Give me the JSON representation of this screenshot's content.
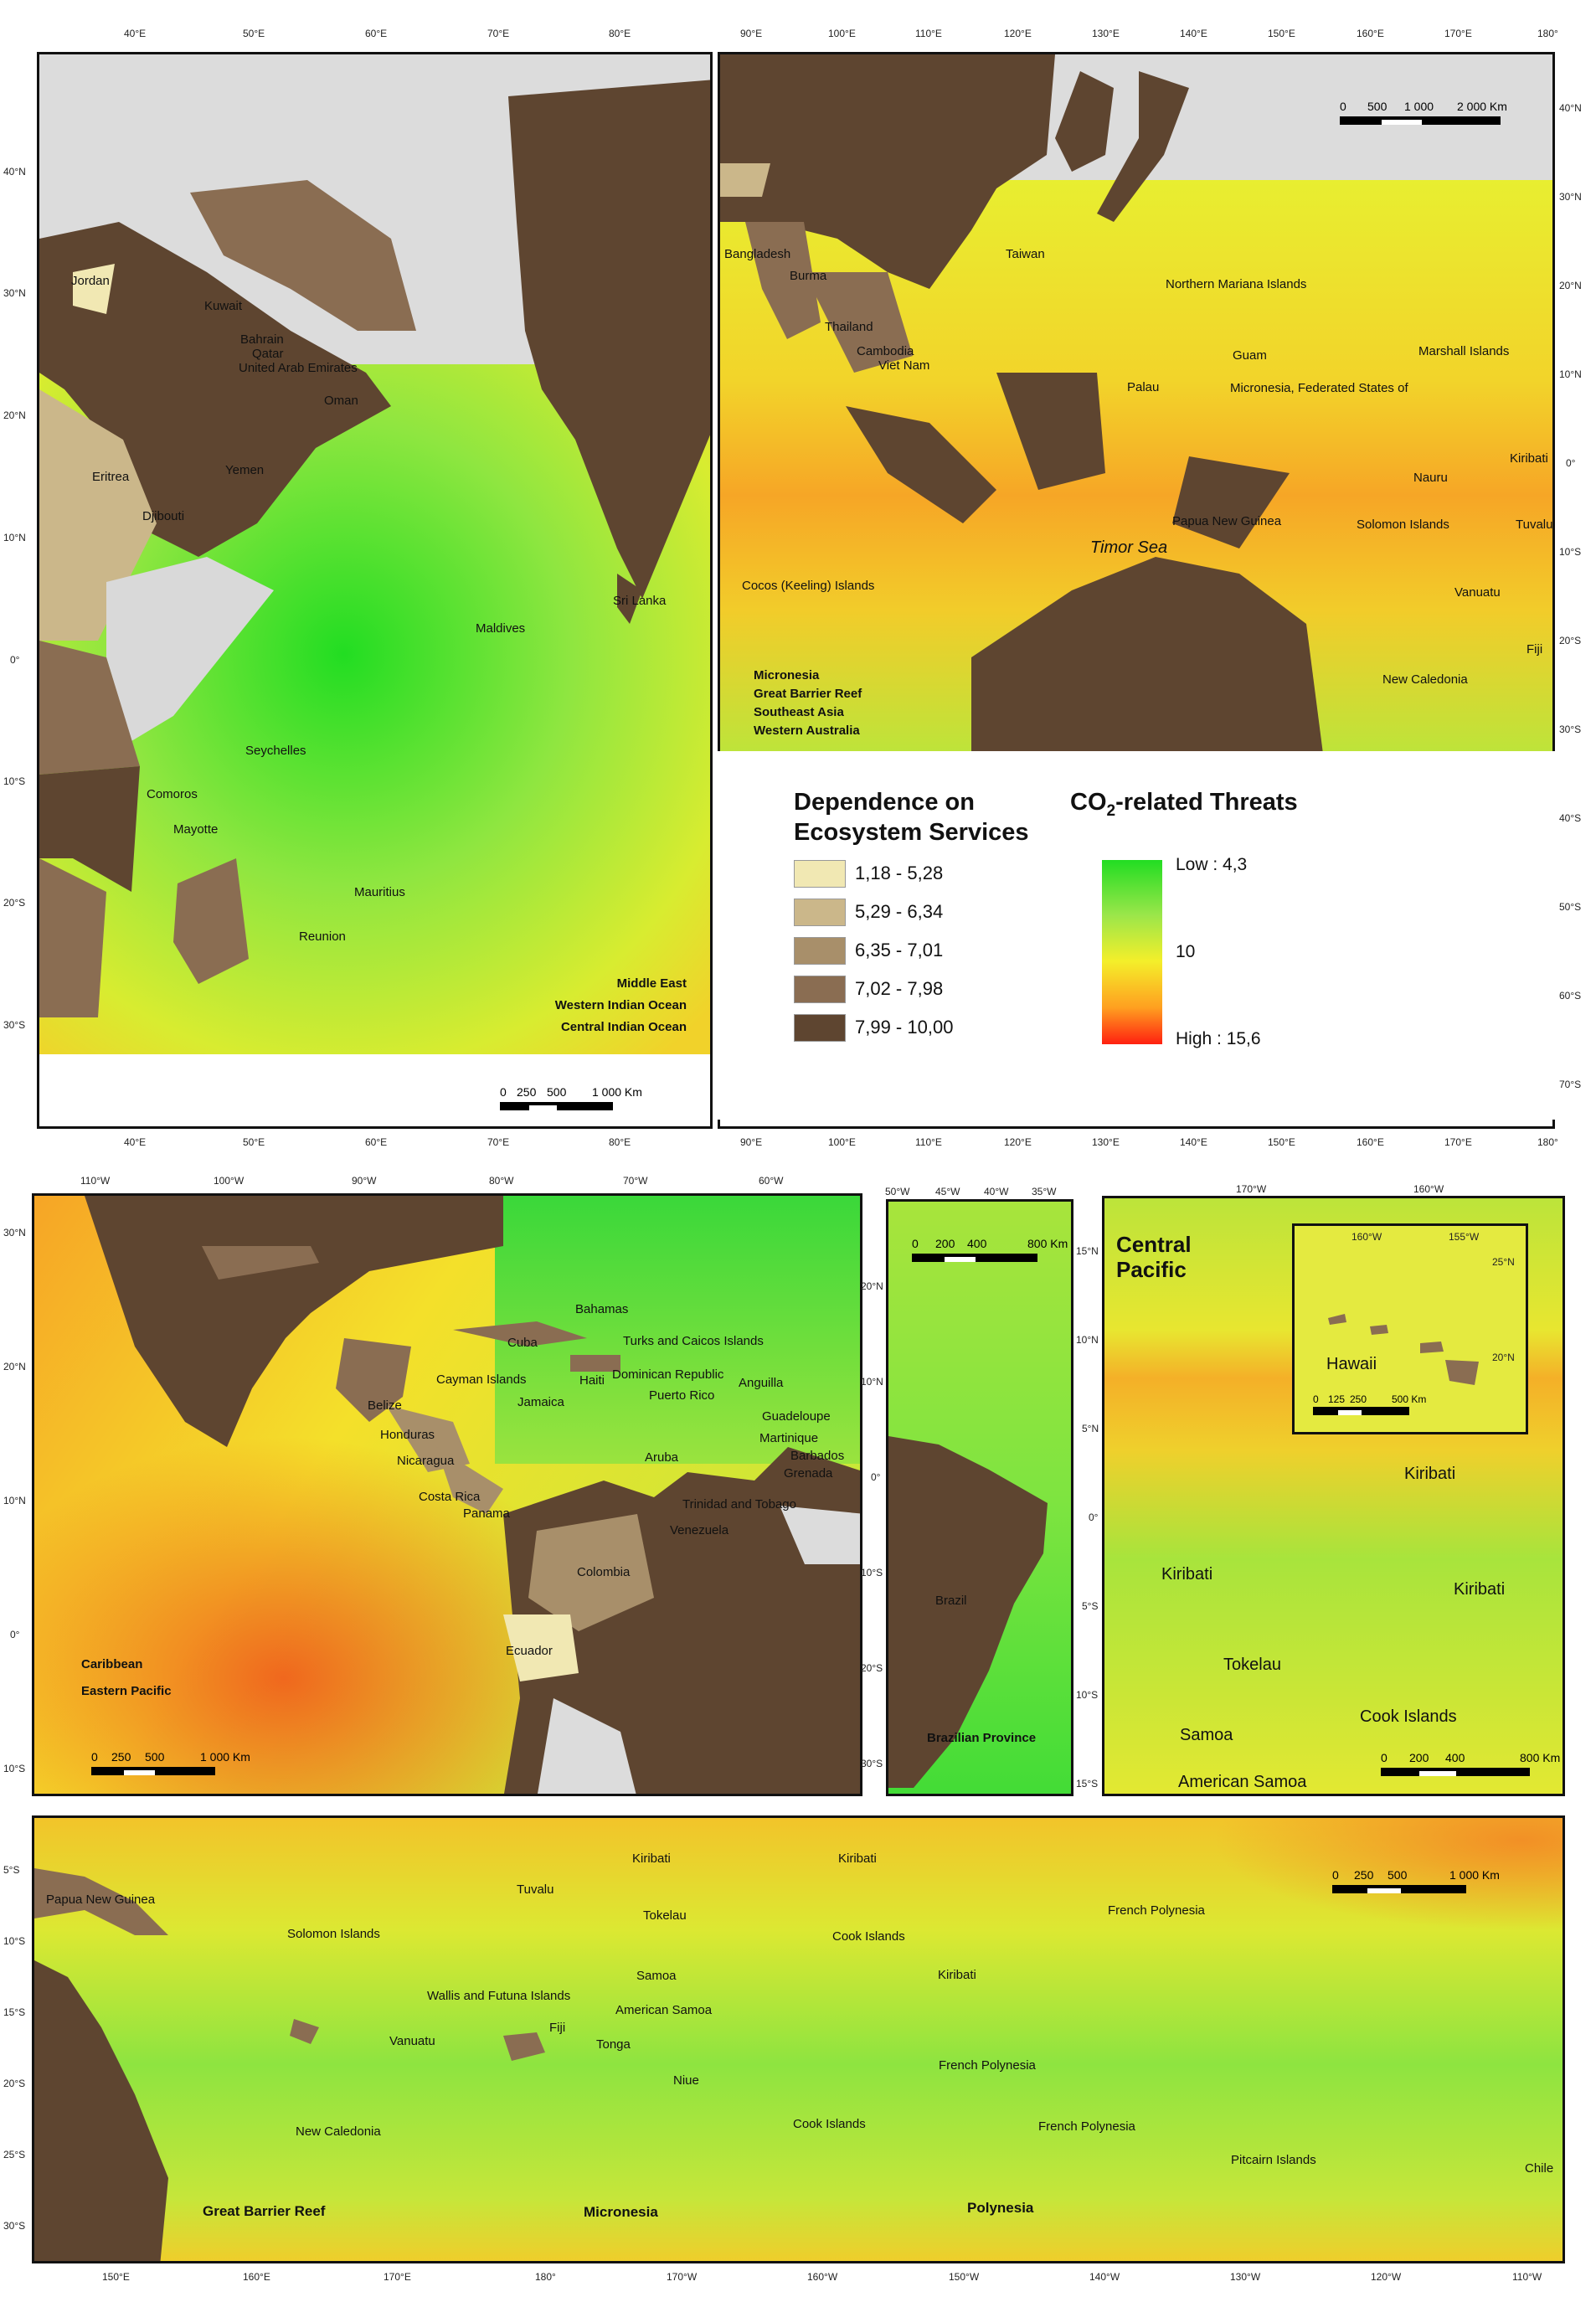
{
  "ticks": {
    "p1_top": [
      "40°E",
      "50°E",
      "60°E",
      "70°E",
      "80°E"
    ],
    "p1_left": [
      "40°N",
      "30°N",
      "20°N",
      "10°N",
      "0°",
      "10°S",
      "20°S",
      "30°S"
    ],
    "p2_top": [
      "90°E",
      "100°E",
      "110°E",
      "120°E",
      "130°E",
      "140°E",
      "150°E",
      "160°E",
      "170°E",
      "180°"
    ],
    "p2_right": [
      "40°N",
      "30°N",
      "20°N",
      "10°N",
      "0°",
      "10°S",
      "20°S",
      "30°S",
      "40°S",
      "50°S",
      "60°S",
      "70°S"
    ],
    "p3_top": [
      "110°W",
      "100°W",
      "90°W",
      "80°W",
      "70°W",
      "60°W"
    ],
    "p3_left": [
      "30°N",
      "20°N",
      "10°N",
      "0°",
      "10°S"
    ],
    "p4_top": [
      "50°W",
      "45°W",
      "40°W",
      "35°W"
    ],
    "p4_left": [
      "20°N",
      "10°N",
      "0°",
      "10°S",
      "20°S",
      "30°S"
    ],
    "p5_top": [
      "170°W",
      "160°W"
    ],
    "p5_left": [
      "15°N",
      "10°N",
      "5°N",
      "0°",
      "5°S",
      "10°S",
      "15°S"
    ],
    "p5_inset_top": [
      "160°W",
      "155°W"
    ],
    "p5_inset_right": [
      "25°N",
      "20°N"
    ],
    "p6_left": [
      "5°S",
      "10°S",
      "15°S",
      "20°S",
      "25°S",
      "30°S"
    ],
    "p6_bottom": [
      "150°E",
      "160°E",
      "170°E",
      "180°",
      "170°W",
      "160°W",
      "150°W",
      "140°W",
      "130°W",
      "120°W",
      "110°W"
    ]
  },
  "labels": {
    "p1": [
      "Jordan",
      "Kuwait",
      "Bahrain",
      "Qatar",
      "United Arab Emirates",
      "Oman",
      "Yemen",
      "Eritrea",
      "Djibouti",
      "Sri Lanka",
      "Maldives",
      "Seychelles",
      "Comoros",
      "Mayotte",
      "Mauritius",
      "Reunion"
    ],
    "p2": [
      "Bangladesh",
      "Burma",
      "Taiwan",
      "Northern Mariana Islands",
      "Thailand",
      "Cambodia",
      "Viet Nam",
      "Guam",
      "Marshall Islands",
      "Palau",
      "Micronesia, Federated States of",
      "Kiribati",
      "Nauru",
      "Papua New Guinea",
      "Solomon Islands",
      "Tuvalu",
      "Timor Sea",
      "Cocos (Keeling) Islands",
      "Vanuatu",
      "Fiji",
      "New Caledonia"
    ],
    "p3": [
      "Bahamas",
      "Cuba",
      "Turks and Caicos Islands",
      "Cayman Islands",
      "Haiti",
      "Dominican Republic",
      "Anguilla",
      "Jamaica",
      "Puerto Rico",
      "Belize",
      "Guadeloupe",
      "Martinique",
      "Honduras",
      "Barbados",
      "Grenada",
      "Nicaragua",
      "Aruba",
      "Costa Rica",
      "Trinidad and Tobago",
      "Panama",
      "Venezuela",
      "Colombia",
      "Ecuador"
    ],
    "p4": [
      "Brazil"
    ],
    "p5": [
      "Hawaii",
      "Kiribati",
      "Kiribati",
      "Kiribati",
      "Tokelau",
      "Samoa",
      "Cook Islands",
      "American Samoa"
    ],
    "p6": [
      "Papua New Guinea",
      "Tuvalu",
      "Kiribati",
      "Kiribati",
      "Solomon Islands",
      "Tokelau",
      "Cook Islands",
      "French Polynesia",
      "Samoa",
      "Kiribati",
      "Wallis and Futuna Islands",
      "American Samoa",
      "Fiji",
      "Tonga",
      "Vanuatu",
      "Niue",
      "French Polynesia",
      "New Caledonia",
      "Cook Islands",
      "French Polynesia",
      "Pitcairn Islands",
      "Chile"
    ]
  },
  "regions": {
    "p1": [
      "Middle East",
      "Western Indian Ocean",
      "Central Indian Ocean"
    ],
    "p2": [
      "Micronesia",
      "Great Barrier Reef",
      "Southeast Asia",
      "Western Australia"
    ],
    "p3": [
      "Caribbean",
      "Eastern Pacific"
    ],
    "p4": [
      "Brazilian Province"
    ],
    "p5": [
      "Central",
      "Pacific"
    ],
    "p6": [
      "Great Barrier Reef",
      "Micronesia",
      "Polynesia"
    ]
  },
  "scalebars": {
    "p1": [
      "0",
      "250",
      "500",
      "1 000 Km"
    ],
    "p2": [
      "0",
      "500",
      "1 000",
      "2 000 Km"
    ],
    "p3": [
      "0",
      "250",
      "500",
      "1 000 Km"
    ],
    "p4": [
      "0",
      "200",
      "400",
      "800 Km"
    ],
    "p5": [
      "0",
      "200",
      "400",
      "800 Km"
    ],
    "p5_inset": [
      "0",
      "125",
      "250",
      "500 Km"
    ],
    "p6": [
      "0",
      "250",
      "500",
      "1 000 Km"
    ]
  },
  "legend": {
    "dependence_title_1": "Dependence on",
    "dependence_title_2": "Ecosystem Services",
    "classes": [
      {
        "label": "1,18 - 5,28",
        "color": "#f1e8b3"
      },
      {
        "label": "5,29 - 6,34",
        "color": "#cbb78a"
      },
      {
        "label": "6,35 - 7,01",
        "color": "#a88f6a"
      },
      {
        "label": "7,02 - 7,98",
        "color": "#8a6d52"
      },
      {
        "label": "7,99 - 10,00",
        "color": "#5e4530"
      }
    ],
    "threat_title": "CO",
    "threat_sub": "2",
    "threat_title_rest": "-related Threats",
    "low": "Low : 4,3",
    "mid": "10",
    "high": "High : 15,6"
  },
  "colors": {
    "land_high": "#5e4530",
    "land_none": "#d9d9d9",
    "ocean_low": "#22dd22",
    "ocean_mid": "#f4ef2a",
    "ocean_high": "#ff2010"
  }
}
